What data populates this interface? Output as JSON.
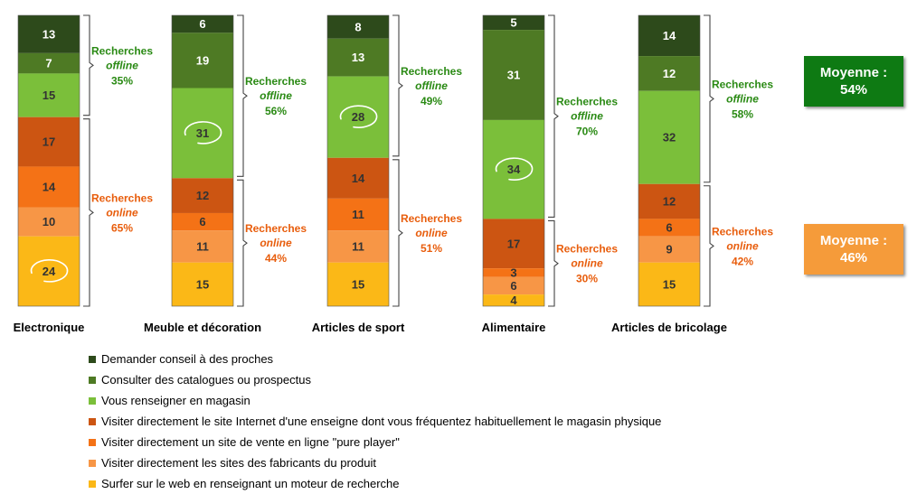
{
  "colors": {
    "dark_green": "#2d4a1b",
    "mid_green": "#4e7a24",
    "light_green": "#7bbf3a",
    "dark_orange": "#cc5512",
    "orange": "#f47216",
    "light_orange": "#f79646",
    "yellow": "#fbb817",
    "offline_text": "#2a8a14",
    "online_text": "#e85d0c",
    "avg_offline_bg": "#0e7a13",
    "avg_online_bg": "#f59b3a"
  },
  "chart_data": {
    "type": "bar",
    "stacked": true,
    "categories": [
      "Electronique",
      "Meuble et décoration",
      "Articles de sport",
      "Alimentaire",
      "Articles de bricolage"
    ],
    "series": [
      {
        "name": "Demander conseil à des proches",
        "color": "#2d4a1b",
        "values": [
          13,
          6,
          8,
          5,
          14
        ]
      },
      {
        "name": "Consulter des catalogues ou prospectus",
        "color": "#4e7a24",
        "values": [
          7,
          19,
          13,
          31,
          12
        ]
      },
      {
        "name": "Vous renseigner en magasin",
        "color": "#7bbf3a",
        "values": [
          15,
          31,
          28,
          34,
          32
        ]
      },
      {
        "name": "Visiter directement le site Internet d'une enseigne dont vous fréquentez habituellement le magasin physique",
        "color": "#cc5512",
        "values": [
          17,
          12,
          14,
          17,
          12
        ]
      },
      {
        "name": "Visiter directement un site de vente en ligne \"pure player\"",
        "color": "#f47216",
        "values": [
          14,
          6,
          11,
          3,
          6
        ]
      },
      {
        "name": "Visiter directement les sites des fabricants du produit",
        "color": "#f79646",
        "values": [
          10,
          11,
          11,
          6,
          9
        ]
      },
      {
        "name": "Surfer sur le web en renseignant un moteur de recherche",
        "color": "#fbb817",
        "values": [
          24,
          15,
          15,
          4,
          15
        ]
      }
    ],
    "circled": [
      {
        "category": "Electronique",
        "series": "Surfer sur le web en renseignant un moteur de recherche"
      },
      {
        "category": "Meuble et décoration",
        "series": "Vous renseigner en magasin"
      },
      {
        "category": "Articles de sport",
        "series": "Vous renseigner en magasin"
      },
      {
        "category": "Alimentaire",
        "series": "Vous renseigner en magasin"
      }
    ],
    "groups": [
      {
        "category": "Electronique",
        "offline": {
          "line1": "Recherches",
          "line2": "offline",
          "pct": "35%"
        },
        "online": {
          "line1": "Recherches",
          "line2": "online",
          "pct": "65%"
        }
      },
      {
        "category": "Meuble et décoration",
        "offline": {
          "line1": "Recherches",
          "line2": "offline",
          "pct": "56%"
        },
        "online": {
          "line1": "Recherches",
          "line2": "online",
          "pct": "44%"
        }
      },
      {
        "category": "Articles de sport",
        "offline": {
          "line1": "Recherches",
          "line2": "offline",
          "pct": "49%"
        },
        "online": {
          "line1": "Recherches",
          "line2": "online",
          "pct": "51%"
        }
      },
      {
        "category": "Alimentaire",
        "offline": {
          "line1": "Recherches",
          "line2": "offline",
          "pct": "70%"
        },
        "online": {
          "line1": "Recherches",
          "line2": "online",
          "pct": "30%"
        }
      },
      {
        "category": "Articles de bricolage",
        "offline": {
          "line1": "Recherches",
          "line2": "offline",
          "pct": "58%"
        },
        "online": {
          "line1": "Recherches",
          "line2": "online",
          "pct": "42%"
        }
      }
    ],
    "legend_position": "bottom-left"
  },
  "averages": {
    "offline": {
      "label": "Moyenne :",
      "value": "54%"
    },
    "online": {
      "label": "Moyenne :",
      "value": "46%"
    }
  }
}
